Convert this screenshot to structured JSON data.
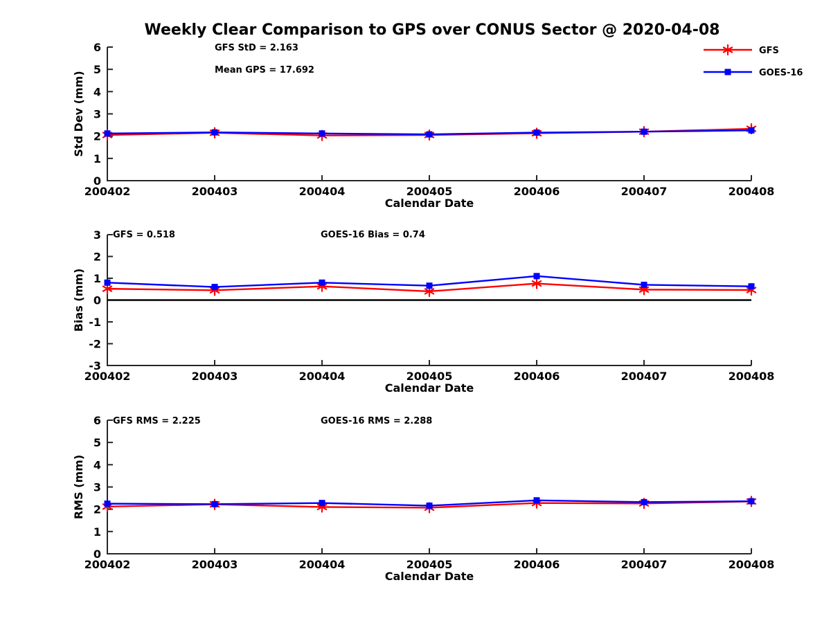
{
  "figure_title": "Weekly Clear Comparison to GPS over CONUS Sector @ 2020-04-08",
  "legend": {
    "position": "top-right",
    "items": [
      {
        "label": "GFS",
        "color": "#ff0000",
        "marker": "star"
      },
      {
        "label": "GOES-16",
        "color": "#0000ff",
        "marker": "square"
      }
    ]
  },
  "chart_data": [
    {
      "type": "line",
      "panel": "std-dev",
      "ylabel": "Std Dev (mm)",
      "xlabel": "Calendar Date",
      "ylim": [
        0,
        6
      ],
      "yticks": [
        0,
        1,
        2,
        3,
        4,
        5,
        6
      ],
      "grid": false,
      "zero_line": false,
      "categories": [
        "200402",
        "200403",
        "200404",
        "200405",
        "200406",
        "200407",
        "200408"
      ],
      "annotations": [
        "GFS StD = 2.163",
        "Mean GPS = 17.692"
      ],
      "series": [
        {
          "name": "GFS",
          "color": "#ff0000",
          "marker": "star",
          "values": [
            2.05,
            2.15,
            2.03,
            2.05,
            2.13,
            2.2,
            2.33
          ]
        },
        {
          "name": "GOES-16",
          "color": "#0000ff",
          "marker": "square",
          "values": [
            2.12,
            2.17,
            2.12,
            2.08,
            2.16,
            2.2,
            2.26
          ]
        }
      ]
    },
    {
      "type": "line",
      "panel": "bias",
      "ylabel": "Bias (mm)",
      "xlabel": "Calendar Date",
      "ylim": [
        -3,
        3
      ],
      "yticks": [
        -3,
        -2,
        -1,
        0,
        1,
        2,
        3
      ],
      "grid": false,
      "zero_line": true,
      "categories": [
        "200402",
        "200403",
        "200404",
        "200405",
        "200406",
        "200407",
        "200408"
      ],
      "annotations": [
        "GFS = 0.518",
        "GOES-16 Bias  = 0.74"
      ],
      "series": [
        {
          "name": "GFS",
          "color": "#ff0000",
          "marker": "star",
          "values": [
            0.52,
            0.45,
            0.63,
            0.4,
            0.76,
            0.48,
            0.46
          ]
        },
        {
          "name": "GOES-16",
          "color": "#0000ff",
          "marker": "square",
          "values": [
            0.8,
            0.6,
            0.8,
            0.66,
            1.1,
            0.7,
            0.63
          ]
        }
      ]
    },
    {
      "type": "line",
      "panel": "rms",
      "ylabel": "RMS (mm)",
      "xlabel": "Calendar Date",
      "ylim": [
        0,
        6
      ],
      "yticks": [
        0,
        1,
        2,
        3,
        4,
        5,
        6
      ],
      "grid": false,
      "zero_line": false,
      "categories": [
        "200402",
        "200403",
        "200404",
        "200405",
        "200406",
        "200407",
        "200408"
      ],
      "annotations": [
        "GFS RMS = 2.225",
        "GOES-16 RMS = 2.288"
      ],
      "series": [
        {
          "name": "GFS",
          "color": "#ff0000",
          "marker": "star",
          "values": [
            2.12,
            2.22,
            2.1,
            2.07,
            2.28,
            2.26,
            2.35
          ]
        },
        {
          "name": "GOES-16",
          "color": "#0000ff",
          "marker": "square",
          "values": [
            2.25,
            2.23,
            2.28,
            2.16,
            2.4,
            2.32,
            2.36
          ]
        }
      ]
    }
  ],
  "colors": {
    "gfs": "#ff0000",
    "goes16": "#0000ff",
    "axis": "#262626",
    "text": "#000000",
    "zero_line": "#000000"
  }
}
